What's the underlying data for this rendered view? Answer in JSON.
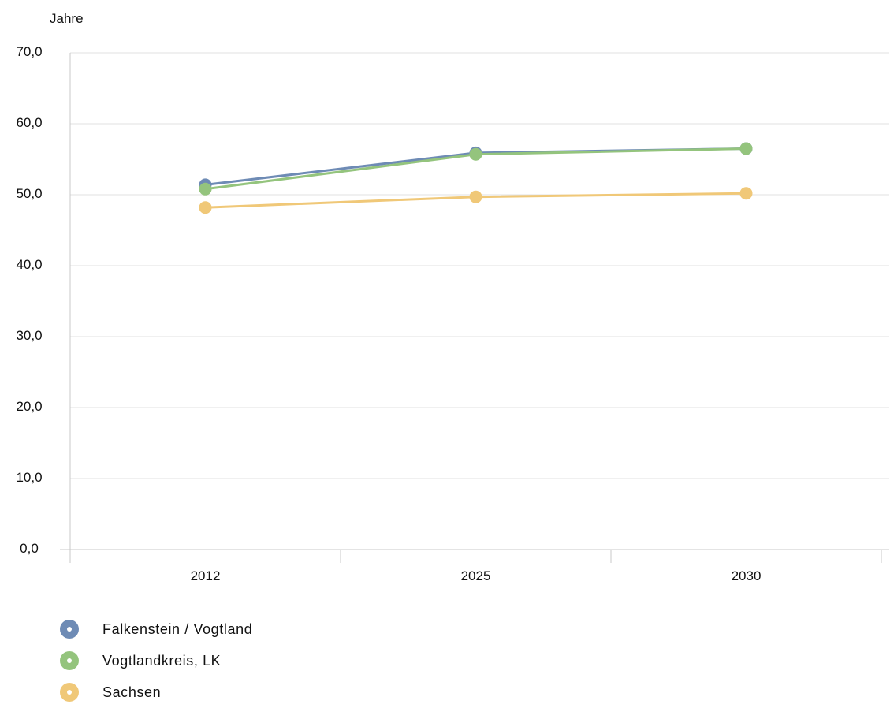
{
  "chart_data": {
    "type": "line",
    "unit_label": "Jahre",
    "categories": [
      "2012",
      "2025",
      "2030"
    ],
    "ylim": [
      0,
      70
    ],
    "yticks": [
      "0,0",
      "10,0",
      "20,0",
      "30,0",
      "40,0",
      "50,0",
      "60,0",
      "70,0"
    ],
    "grid": true,
    "legend_position": "bottom-left",
    "series": [
      {
        "name": "Falkenstein / Vogtland",
        "color": "#6e8bb5",
        "values": [
          51.4,
          55.9,
          56.5
        ]
      },
      {
        "name": "Vogtlandkreis, LK",
        "color": "#94c47d",
        "values": [
          50.8,
          55.7,
          56.5
        ]
      },
      {
        "name": "Sachsen",
        "color": "#f0c878",
        "values": [
          48.2,
          49.7,
          50.2
        ]
      }
    ]
  }
}
